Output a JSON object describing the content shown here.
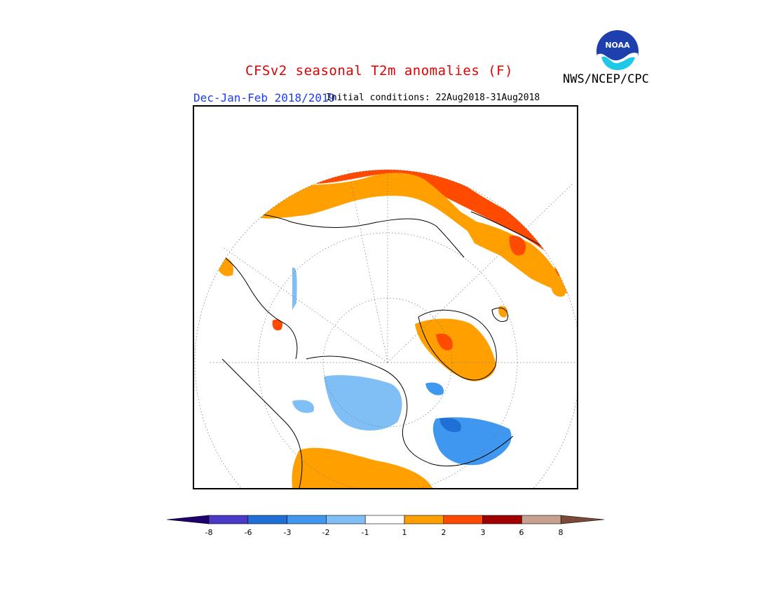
{
  "title": "CFSv2 seasonal T2m anomalies (F)",
  "agency": "NWS/NCEP/CPC",
  "logo_text": "NOAA",
  "season": "Dec-Jan-Feb 2018/2019",
  "initial_conditions": "Initial conditions: 22Aug2018-31Aug2018",
  "colors": {
    "title": "#e00000",
    "season": "#1a3cff",
    "bins": [
      "#20006e",
      "#4b39c8",
      "#1f6fd6",
      "#3f97ef",
      "#7fbff5",
      "#ffffff",
      "#ffa000",
      "#ff4a00",
      "#a00000",
      "#c8a090",
      "#7a4a38"
    ]
  },
  "legend": {
    "ticks": [
      "-8",
      "-6",
      "-3",
      "-2",
      "-1",
      "1",
      "2",
      "3",
      "6",
      "8"
    ]
  }
}
